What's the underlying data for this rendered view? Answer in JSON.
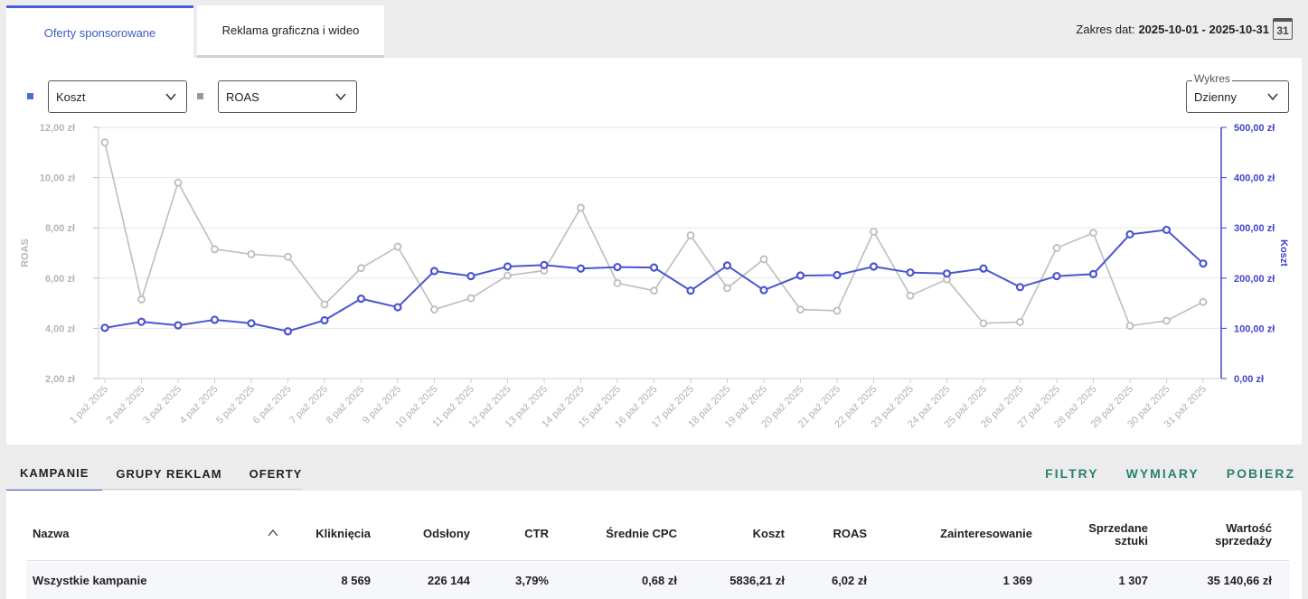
{
  "top_tabs": [
    {
      "label": "Oferty sponsorowane",
      "active": true
    },
    {
      "label": "Reklama graficzna i wideo",
      "active": false
    }
  ],
  "date_range": {
    "label": "Zakres dat:",
    "value": "2025-10-01 - 2025-10-31",
    "calendar_day": "31"
  },
  "metric_selects": {
    "primary": {
      "value": "Koszt",
      "color": "#4a6fd8"
    },
    "secondary": {
      "value": "ROAS",
      "color": "#999999"
    }
  },
  "chart_select": {
    "label": "Wykres",
    "value": "Dzienny"
  },
  "chart_data": {
    "type": "line",
    "x": [
      "1 paź 2025",
      "2 paź 2025",
      "3 paź 2025",
      "4 paź 2025",
      "5 paź 2025",
      "6 paź 2025",
      "7 paź 2025",
      "8 paź 2025",
      "9 paź 2025",
      "10 paź 2025",
      "11 paź 2025",
      "12 paź 2025",
      "13 paź 2025",
      "14 paź 2025",
      "15 paź 2025",
      "16 paź 2025",
      "17 paź 2025",
      "18 paź 2025",
      "19 paź 2025",
      "20 paź 2025",
      "21 paź 2025",
      "22 paź 2025",
      "23 paź 2025",
      "24 paź 2025",
      "25 paź 2025",
      "26 paź 2025",
      "27 paź 2025",
      "28 paź 2025",
      "29 paź 2025",
      "30 paź 2025",
      "31 paź 2025"
    ],
    "series": [
      {
        "name": "ROAS",
        "axis": "left",
        "color": "#bdbdbd",
        "values": [
          11.4,
          5.15,
          9.8,
          7.15,
          6.95,
          6.85,
          4.95,
          6.4,
          7.25,
          4.75,
          5.2,
          6.1,
          6.3,
          8.8,
          5.8,
          5.5,
          7.7,
          5.6,
          6.75,
          4.75,
          4.7,
          7.85,
          5.3,
          5.95,
          4.2,
          4.25,
          7.2,
          7.8,
          4.1,
          4.3,
          5.05
        ]
      },
      {
        "name": "Koszt",
        "axis": "right",
        "color": "#4a55d0",
        "values": [
          101,
          113,
          106,
          117,
          110,
          94,
          116,
          159,
          142,
          214,
          204,
          223,
          226,
          219,
          222,
          221,
          175,
          225,
          176,
          205,
          206,
          223,
          211,
          209,
          219,
          182,
          204,
          208,
          287,
          296,
          229
        ]
      }
    ],
    "left_axis": {
      "label": "ROAS",
      "ticks": [
        "12,00 zł",
        "10,00 zł",
        "8,00 zł",
        "6,00 zł",
        "4,00 zł",
        "2,00 zł"
      ],
      "range": [
        2,
        12
      ]
    },
    "right_axis": {
      "label": "Koszt",
      "ticks": [
        "500,00 zł",
        "400,00 zł",
        "300,00 zł",
        "200,00 zł",
        "100,00 zł",
        "0,00 zł"
      ],
      "range": [
        0,
        500
      ]
    },
    "grid": true
  },
  "bottom_tabs": [
    {
      "label": "KAMPANIE",
      "active": true
    },
    {
      "label": "GRUPY REKLAM",
      "active": false
    },
    {
      "label": "OFERTY",
      "active": false
    }
  ],
  "actions": [
    "FILTRY",
    "WYMIARY",
    "POBIERZ"
  ],
  "table": {
    "headers": {
      "name": "Nazwa",
      "clicks": "Kliknięcia",
      "views": "Odsłony",
      "ctr": "CTR",
      "cpc": "Średnie CPC",
      "cost": "Koszt",
      "roas": "ROAS",
      "interest": "Zainteresowanie",
      "sold_1": "Sprzedane",
      "sold_2": "sztuki",
      "value_1": "Wartość",
      "value_2": "sprzedaży"
    },
    "row": {
      "name": "Wszystkie kampanie",
      "clicks": "8 569",
      "views": "226 144",
      "ctr": "3,79%",
      "cpc": "0,68 zł",
      "cost": "5836,21 zł",
      "roas": "6,02 zł",
      "interest": "1 369",
      "sold": "1 307",
      "value": "35 140,66 zł"
    }
  }
}
